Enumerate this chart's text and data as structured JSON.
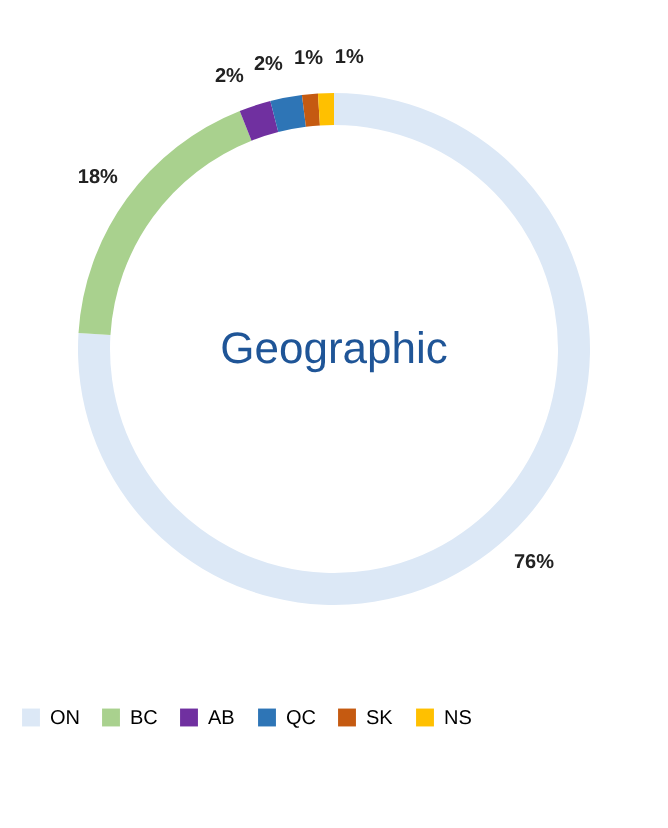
{
  "chart_data": {
    "type": "donut",
    "title": "Geographic",
    "categories": [
      "ON",
      "BC",
      "AB",
      "QC",
      "SK",
      "NS"
    ],
    "values": [
      76,
      18,
      2,
      2,
      1,
      1
    ],
    "value_labels": [
      "76%",
      "18%",
      "2%",
      "2%",
      "1%",
      "1%"
    ],
    "colors": [
      "#dce8f6",
      "#a9d18e",
      "#7030a0",
      "#2e75b6",
      "#c55a11",
      "#ffc000"
    ],
    "legend": "bottom"
  }
}
